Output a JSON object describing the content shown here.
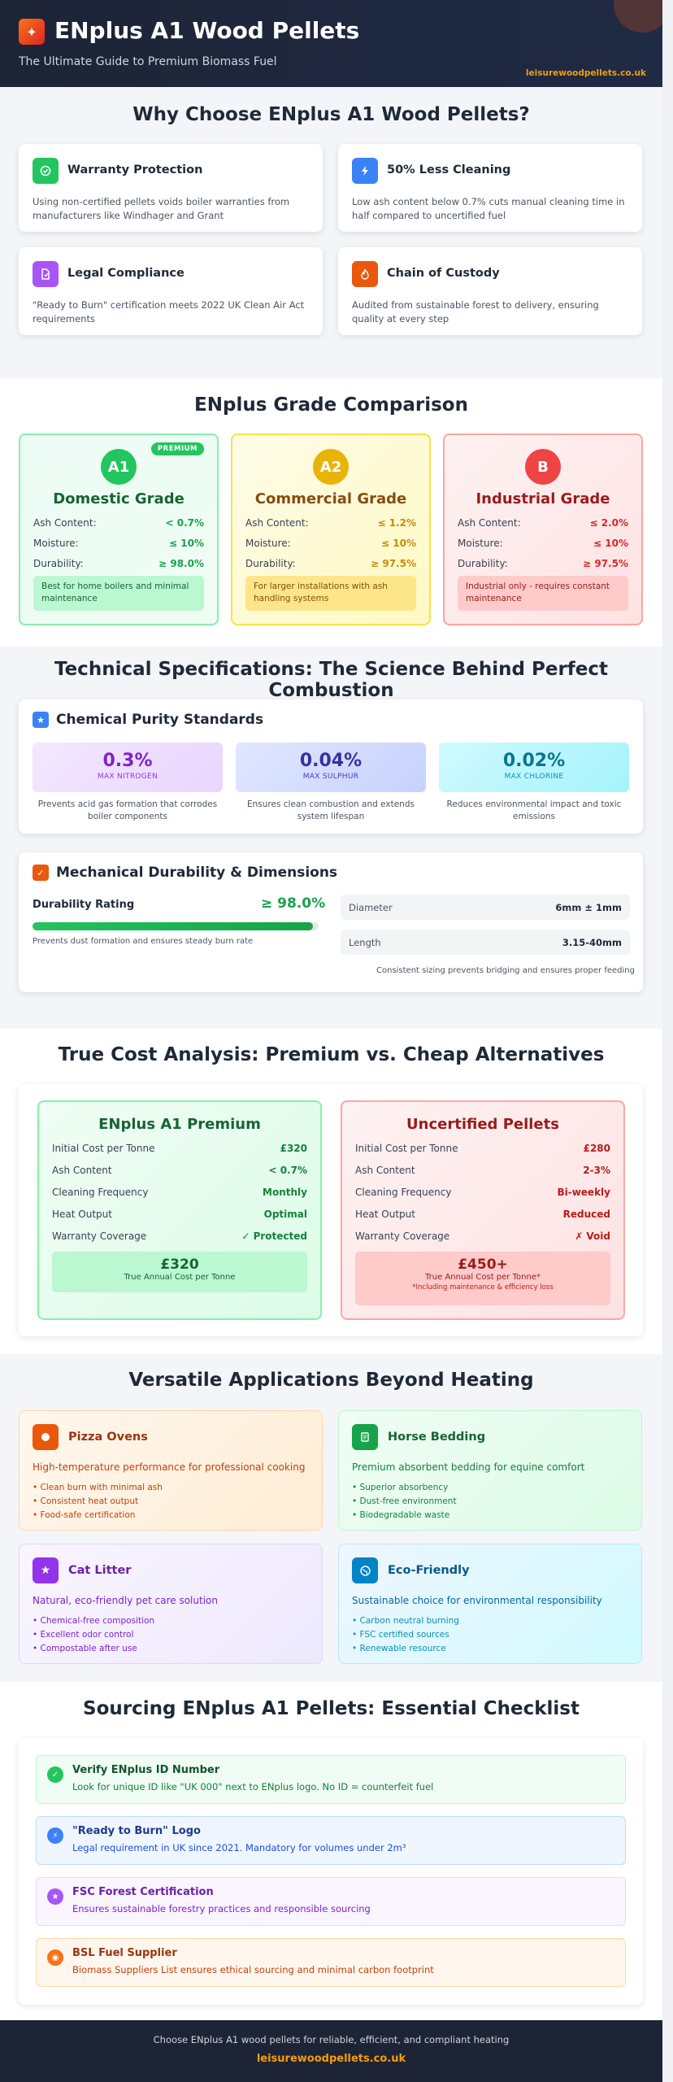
{
  "header": {
    "title": "ENplus A1 Wood Pellets",
    "subtitle": "The Ultimate Guide to Premium Biomass Fuel",
    "site": "leisurewoodpellets.co.uk"
  },
  "why": {
    "title": "Why Choose ENplus A1 Wood Pellets?",
    "features": [
      {
        "title": "Warranty Protection",
        "desc": "Using non-certified pellets voids boiler warranties from manufacturers like Windhager and Grant",
        "icon": "shield-check-icon",
        "color": "#22c55e"
      },
      {
        "title": "50% Less Cleaning",
        "desc": "Low ash content below 0.7% cuts manual cleaning time in half compared to uncertified fuel",
        "icon": "lightning-icon",
        "color": "#3b82f6"
      },
      {
        "title": "Legal Compliance",
        "desc": "\"Ready to Burn\" certification meets 2022 UK Clean Air Act requirements",
        "icon": "document-icon",
        "color": "#a855f7"
      },
      {
        "title": "Chain of Custody",
        "desc": "Audited from sustainable forest to delivery, ensuring quality at every step",
        "icon": "flame-icon",
        "color": "#ea580c"
      }
    ]
  },
  "grades": {
    "title": "ENplus Grade Comparison",
    "labels": {
      "ash": "Ash Content:",
      "moisture": "Moisture:",
      "durability": "Durability:"
    },
    "items": [
      {
        "code": "A1",
        "name": "Domestic Grade",
        "badge": "PREMIUM",
        "ash": "< 0.7%",
        "moisture": "≤ 10%",
        "durability": "≥ 98.0%",
        "note": "Best for home boilers and minimal maintenance"
      },
      {
        "code": "A2",
        "name": "Commercial Grade",
        "ash": "≤ 1.2%",
        "moisture": "≤ 10%",
        "durability": "≥ 97.5%",
        "note": "For larger installations with ash handling systems"
      },
      {
        "code": "B",
        "name": "Industrial Grade",
        "ash": "≤ 2.0%",
        "moisture": "≤ 10%",
        "durability": "≥ 97.5%",
        "note": "Industrial only - requires constant maintenance"
      }
    ]
  },
  "tech": {
    "title": "Technical Specifications: The Science Behind Perfect Combustion",
    "purity": {
      "title": "Chemical Purity Standards",
      "stats": [
        {
          "value": "0.3%",
          "label": "MAX NITROGEN",
          "desc": "Prevents acid gas formation that corrodes boiler components"
        },
        {
          "value": "0.04%",
          "label": "MAX SULPHUR",
          "desc": "Ensures clean combustion and extends system lifespan"
        },
        {
          "value": "0.02%",
          "label": "MAX CHLORINE",
          "desc": "Reduces environmental impact and toxic emissions"
        }
      ]
    },
    "mech": {
      "title": "Mechanical Durability & Dimensions",
      "durability_label": "Durability Rating",
      "durability_value": "≥ 98.0%",
      "durability_fraction": 0.98,
      "durability_desc": "Prevents dust formation and ensures steady burn rate",
      "diameter_label": "Diameter",
      "diameter_value": "6mm ± 1mm",
      "length_label": "Length",
      "length_value": "3.15-40mm",
      "dims_desc": "Consistent sizing prevents bridging and ensures proper feeding"
    }
  },
  "cost": {
    "title": "True Cost Analysis: Premium vs. Cheap Alternatives",
    "row_labels": [
      "Initial Cost per Tonne",
      "Ash Content",
      "Cleaning Frequency",
      "Heat Output",
      "Warranty Coverage"
    ],
    "premium": {
      "title": "ENplus A1 Premium",
      "values": [
        "£320",
        "< 0.7%",
        "Monthly",
        "Optimal",
        "✓ Protected"
      ],
      "total": "£320",
      "total_label": "True Annual Cost per Tonne"
    },
    "cheap": {
      "title": "Uncertified Pellets",
      "values": [
        "£280",
        "2-3%",
        "Bi-weekly",
        "Reduced",
        "✗ Void"
      ],
      "total": "£450+",
      "total_label": "True Annual Cost per Tonne*",
      "footnote": "*Including maintenance & efficiency loss"
    }
  },
  "apps": {
    "title": "Versatile Applications Beyond Heating",
    "items": [
      {
        "title": "Pizza Ovens",
        "subtitle": "High-temperature performance for professional cooking",
        "bullets": [
          "• Clean burn with minimal ash",
          "• Consistent heat output",
          "• Food-safe certification"
        ],
        "icon": "pizza-icon"
      },
      {
        "title": "Horse Bedding",
        "subtitle": "Premium absorbent bedding for equine comfort",
        "bullets": [
          "• Superior absorbency",
          "• Dust-free environment",
          "• Biodegradable waste"
        ],
        "icon": "bedding-icon"
      },
      {
        "title": "Cat Litter",
        "subtitle": "Natural, eco-friendly pet care solution",
        "bullets": [
          "• Chemical-free composition",
          "• Excellent odor control",
          "• Compostable after use"
        ],
        "icon": "star-icon"
      },
      {
        "title": "Eco-Friendly",
        "subtitle": "Sustainable choice for environmental responsibility",
        "bullets": [
          "• Carbon neutral burning",
          "• FSC certified sources",
          "• Renewable resource"
        ],
        "icon": "globe-icon"
      }
    ]
  },
  "checklist": {
    "title": "Sourcing ENplus A1 Pellets: Essential Checklist",
    "items": [
      {
        "title": "Verify ENplus ID Number",
        "desc": "Look for unique ID like \"UK 000\" next to ENplus logo. No ID = counterfeit fuel"
      },
      {
        "title": "\"Ready to Burn\" Logo",
        "desc": "Legal requirement in UK since 2021. Mandatory for volumes under 2m³"
      },
      {
        "title": "FSC Forest Certification",
        "desc": "Ensures sustainable forestry practices and responsible sourcing"
      },
      {
        "title": "BSL Fuel Supplier",
        "desc": "Biomass Suppliers List ensures ethical sourcing and minimal carbon footprint"
      }
    ]
  },
  "footer": {
    "text": "Choose ENplus A1 wood pellets for reliable, efficient, and compliant heating",
    "site": "leisurewoodpellets.co.uk"
  }
}
